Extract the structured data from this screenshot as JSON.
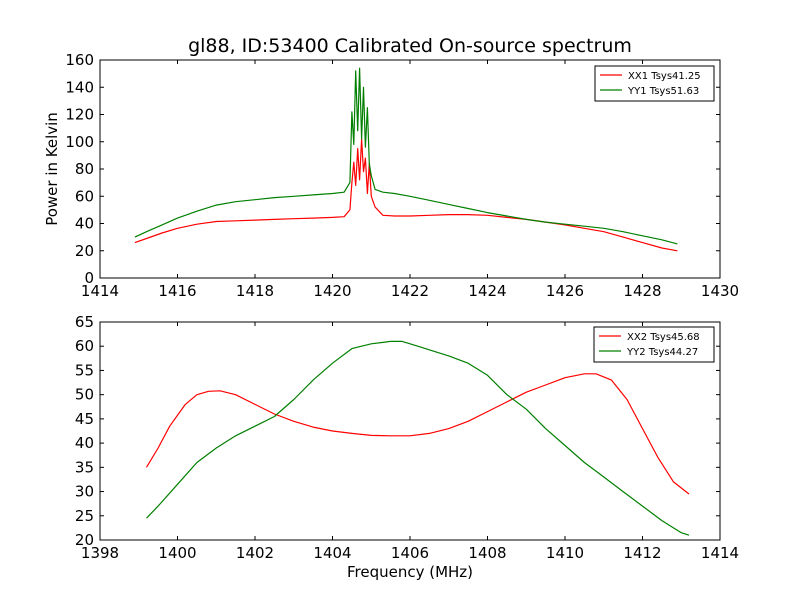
{
  "chart_data": [
    {
      "type": "line",
      "title": "gl88, ID:53400 Calibrated On-source spectrum",
      "xlabel": "",
      "ylabel": "Power in Kelvin",
      "xlim": [
        1414,
        1430
      ],
      "ylim": [
        0,
        160
      ],
      "xticks": [
        "1414",
        "1416",
        "1418",
        "1420",
        "1422",
        "1424",
        "1426",
        "1428",
        "1430"
      ],
      "yticks": [
        "0",
        "20",
        "40",
        "60",
        "80",
        "100",
        "120",
        "140",
        "160"
      ],
      "legend_position": "top-right",
      "grid": false,
      "series": [
        {
          "name": "XX1 Tsys41.25",
          "color": "#ff0000",
          "x": [
            1414.9,
            1415.2,
            1415.6,
            1416.0,
            1416.5,
            1417.0,
            1417.5,
            1418.0,
            1418.5,
            1419.0,
            1419.5,
            1420.0,
            1420.3,
            1420.45,
            1420.5,
            1420.55,
            1420.6,
            1420.65,
            1420.7,
            1420.75,
            1420.8,
            1420.85,
            1420.9,
            1420.95,
            1421.0,
            1421.1,
            1421.3,
            1421.6,
            1422.0,
            1422.5,
            1423.0,
            1423.5,
            1424.0,
            1424.5,
            1425.0,
            1425.5,
            1426.0,
            1426.5,
            1427.0,
            1427.5,
            1428.0,
            1428.5,
            1428.9
          ],
          "y": [
            26,
            29,
            33,
            36.5,
            39.5,
            41.5,
            42,
            42.5,
            43,
            43.5,
            44,
            44.5,
            45,
            50,
            70,
            85,
            68,
            95,
            72,
            102,
            78,
            88,
            62,
            84,
            60,
            52,
            46,
            45.5,
            45.5,
            46,
            46.5,
            46.5,
            46,
            44.5,
            43,
            41,
            39,
            36.5,
            34,
            30,
            26,
            22,
            20
          ]
        },
        {
          "name": "YY1 Tsys51.63",
          "color": "#008000",
          "x": [
            1414.9,
            1415.2,
            1415.6,
            1416.0,
            1416.5,
            1417.0,
            1417.5,
            1418.0,
            1418.5,
            1419.0,
            1419.5,
            1420.0,
            1420.3,
            1420.45,
            1420.5,
            1420.55,
            1420.6,
            1420.65,
            1420.7,
            1420.75,
            1420.8,
            1420.85,
            1420.9,
            1420.95,
            1421.0,
            1421.1,
            1421.3,
            1421.6,
            1422.0,
            1422.5,
            1423.0,
            1423.5,
            1424.0,
            1424.5,
            1425.0,
            1425.5,
            1426.0,
            1426.5,
            1427.0,
            1427.5,
            1428.0,
            1428.5,
            1428.9
          ],
          "y": [
            30,
            34,
            39,
            44,
            49,
            53.5,
            56,
            57.5,
            59,
            60,
            61,
            62,
            63,
            70,
            122,
            98,
            152,
            108,
            154,
            102,
            140,
            96,
            125,
            84,
            75,
            65,
            63,
            62,
            60,
            57,
            54,
            51,
            48,
            45.5,
            43,
            41,
            39.5,
            38,
            36.5,
            34,
            31,
            28,
            25
          ]
        }
      ]
    },
    {
      "type": "line",
      "title": "",
      "xlabel": "Frequency (MHz)",
      "ylabel": "",
      "xlim": [
        1398,
        1414
      ],
      "ylim": [
        20,
        65
      ],
      "xticks": [
        "1398",
        "1400",
        "1402",
        "1404",
        "1406",
        "1408",
        "1410",
        "1412",
        "1414"
      ],
      "yticks": [
        "20",
        "25",
        "30",
        "35",
        "40",
        "45",
        "50",
        "55",
        "60",
        "65"
      ],
      "legend_position": "top-right",
      "grid": false,
      "series": [
        {
          "name": "XX2 Tsys45.68",
          "color": "#ff0000",
          "x": [
            1399.2,
            1399.5,
            1399.8,
            1400.2,
            1400.5,
            1400.8,
            1401.1,
            1401.5,
            1402.0,
            1402.5,
            1403.0,
            1403.5,
            1404.0,
            1404.5,
            1405.0,
            1405.5,
            1406.0,
            1406.5,
            1407.0,
            1407.5,
            1408.0,
            1408.5,
            1409.0,
            1409.5,
            1410.0,
            1410.5,
            1410.8,
            1411.2,
            1411.6,
            1412.0,
            1412.4,
            1412.8,
            1413.2
          ],
          "y": [
            35,
            39,
            43.5,
            48,
            50,
            50.7,
            50.8,
            50,
            48,
            46,
            44.5,
            43.3,
            42.5,
            42,
            41.6,
            41.5,
            41.5,
            42,
            43,
            44.5,
            46.5,
            48.5,
            50.5,
            52,
            53.5,
            54.3,
            54.3,
            53,
            49,
            43,
            37,
            32,
            29.5
          ]
        },
        {
          "name": "YY2 Tsys44.27",
          "color": "#008000",
          "x": [
            1399.2,
            1399.5,
            1400.0,
            1400.5,
            1401.0,
            1401.5,
            1402.0,
            1402.5,
            1403.0,
            1403.5,
            1404.0,
            1404.5,
            1405.0,
            1405.5,
            1405.8,
            1406.2,
            1406.6,
            1407.0,
            1407.5,
            1408.0,
            1408.5,
            1409.0,
            1409.5,
            1410.0,
            1410.5,
            1411.0,
            1411.5,
            1412.0,
            1412.5,
            1413.0,
            1413.2
          ],
          "y": [
            24.5,
            27,
            31.5,
            36,
            39,
            41.5,
            43.5,
            45.5,
            49,
            53,
            56.5,
            59.5,
            60.5,
            61,
            61,
            60,
            59,
            58,
            56.5,
            54,
            50,
            47,
            43,
            39.5,
            36,
            33,
            30,
            27,
            24,
            21.5,
            21
          ]
        }
      ]
    }
  ]
}
